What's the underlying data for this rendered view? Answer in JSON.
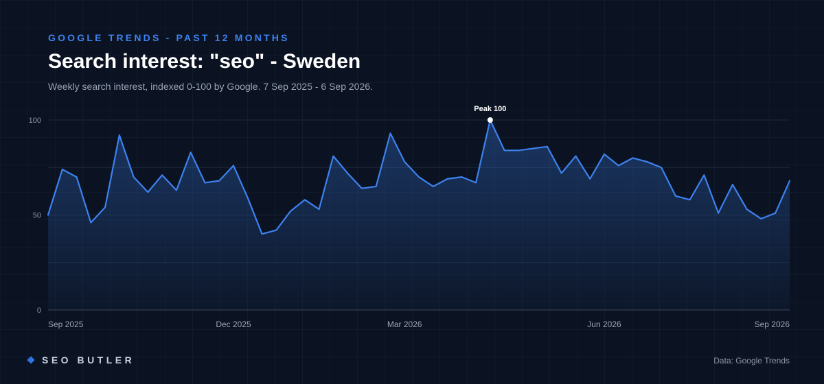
{
  "header": {
    "kicker": "GOOGLE TRENDS - PAST 12 MONTHS",
    "title": "Search interest: \"seo\" - Sweden",
    "subtitle": "Weekly search interest, indexed 0-100 by Google. 7 Sep 2025 - 6 Sep 2026."
  },
  "footer": {
    "brand": "SEO BUTLER",
    "source": "Data: Google Trends"
  },
  "colors": {
    "background": "#0b1322",
    "line": "#3d82f0",
    "kicker": "#3d82f0"
  },
  "chart_data": {
    "type": "area",
    "title": "Search interest: \"seo\" - Sweden",
    "xlabel": "",
    "ylabel": "",
    "ylim": [
      0,
      100
    ],
    "yticks": [
      0,
      50,
      100
    ],
    "x_tick_labels": [
      "Sep 2025",
      "Dec 2025",
      "Mar 2026",
      "Jun 2026",
      "Sep 2026"
    ],
    "x_tick_weeks": [
      0,
      13,
      25,
      39,
      52
    ],
    "grid": true,
    "series": [
      {
        "values": [
          50,
          74,
          70,
          46,
          54,
          92,
          70,
          62,
          71,
          63,
          83,
          67,
          68,
          76,
          59,
          40,
          42,
          52,
          58,
          53,
          81,
          72,
          64,
          65,
          93,
          78,
          70,
          65,
          69,
          70,
          67,
          100,
          84,
          84,
          85,
          86,
          72,
          81,
          69,
          82,
          76,
          80,
          78,
          75,
          60,
          58,
          71,
          51,
          66,
          53,
          48,
          51,
          68
        ]
      }
    ],
    "annotations": [
      {
        "week": 31,
        "value": 100,
        "text": "Peak 100"
      }
    ]
  }
}
